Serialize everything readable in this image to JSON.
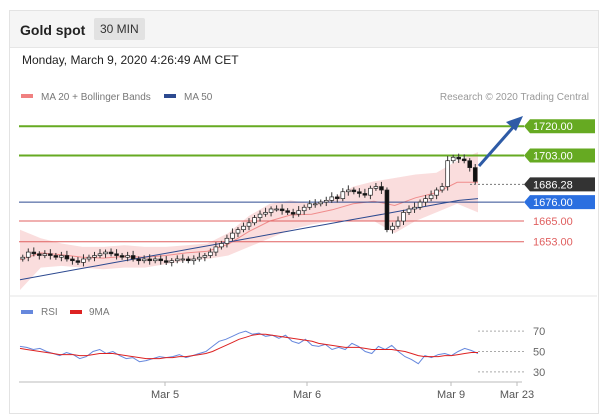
{
  "header": {
    "title": "Gold spot",
    "interval": "30 MIN"
  },
  "timestamp": "Monday, March 9, 2020 4:26:49 AM CET",
  "legend": {
    "bollinger": "MA 20 + Bollinger Bands",
    "ma50": "MA 50",
    "credit": "Research © 2020 Trading Central"
  },
  "rsi_legend": {
    "rsi": "RSI",
    "ma9": "9MA"
  },
  "colors": {
    "up": "#555555",
    "down": "#111111",
    "resistance": "#66aa22",
    "support": "#e06060",
    "ma50": "#2d4a90",
    "bands": "#f5b3b3",
    "rsi": "#6688dd",
    "ma9": "#dd2222",
    "arrow": "#2e5ba6",
    "price_badge": "#333333",
    "ma50_badge": "#2b6fe0"
  },
  "chart_data": [
    {
      "type": "line",
      "title": "",
      "ylim": [
        1625,
        1730
      ],
      "x_ticks": [
        "Mar 5",
        "Mar 6",
        "Mar 9",
        "Mar 23"
      ],
      "levels": [
        {
          "label": "1720.00",
          "value": 1720.0,
          "kind": "resistance"
        },
        {
          "label": "1703.00",
          "value": 1703.0,
          "kind": "resistance"
        },
        {
          "label": "1686.28",
          "value": 1686.28,
          "kind": "last_price"
        },
        {
          "label": "1676.00",
          "value": 1676.0,
          "kind": "ma50"
        },
        {
          "label": "1665.00",
          "value": 1665.0,
          "kind": "support"
        },
        {
          "label": "1653.00",
          "value": 1653.0,
          "kind": "support"
        }
      ],
      "close_series": [
        1644,
        1647,
        1646,
        1645,
        1646,
        1645,
        1644,
        1645,
        1643,
        1642,
        1641,
        1643,
        1644,
        1645,
        1646,
        1647,
        1646,
        1645,
        1644,
        1645,
        1643,
        1642,
        1643,
        1642,
        1643,
        1642,
        1641,
        1642,
        1643,
        1643,
        1642,
        1643,
        1644,
        1645,
        1647,
        1650,
        1652,
        1655,
        1658,
        1660,
        1662,
        1664,
        1667,
        1669,
        1670,
        1672,
        1672,
        1671,
        1670,
        1669,
        1671,
        1673,
        1675,
        1675,
        1676,
        1677,
        1679,
        1678,
        1682,
        1683,
        1682,
        1681,
        1680,
        1684,
        1685,
        1683,
        1660,
        1662,
        1665,
        1670,
        1672,
        1673,
        1676,
        1678,
        1680,
        1683,
        1685,
        1700,
        1702,
        1701,
        1700,
        1696,
        1688
      ],
      "ma50": [
        1631,
        1633,
        1635,
        1637,
        1639,
        1641,
        1643,
        1645,
        1647,
        1649,
        1651,
        1653,
        1655,
        1657,
        1659,
        1661,
        1663,
        1665,
        1667,
        1669,
        1671,
        1673,
        1675,
        1677,
        1678
      ],
      "bb_upper": [
        1660,
        1655,
        1652,
        1650,
        1650,
        1651,
        1650,
        1650,
        1651,
        1652,
        1658,
        1668,
        1675,
        1677,
        1675,
        1678,
        1685,
        1688,
        1690,
        1692,
        1693,
        1700,
        1705
      ],
      "bb_lower": [
        1625,
        1638,
        1639,
        1638,
        1637,
        1638,
        1638,
        1640,
        1642,
        1643,
        1645,
        1650,
        1655,
        1660,
        1663,
        1665,
        1665,
        1665,
        1658,
        1665,
        1670,
        1675,
        1670
      ]
    },
    {
      "type": "line",
      "title": "",
      "ylim": [
        20,
        80
      ],
      "y_ticks": [
        70,
        50,
        30
      ],
      "series": [
        {
          "name": "RSI",
          "values": [
            55,
            54,
            52,
            53,
            50,
            48,
            46,
            49,
            47,
            43,
            45,
            50,
            52,
            48,
            50,
            46,
            43,
            44,
            40,
            41,
            43,
            45,
            44,
            45,
            47,
            44,
            46,
            48,
            50,
            55,
            60,
            62,
            65,
            68,
            70,
            67,
            68,
            65,
            66,
            63,
            66,
            60,
            58,
            62,
            56,
            55,
            57,
            52,
            54,
            52,
            58,
            55,
            50,
            48,
            55,
            52,
            56,
            50,
            45,
            42,
            38,
            46,
            44,
            47,
            48,
            46,
            50,
            53,
            51,
            48
          ]
        },
        {
          "name": "9MA",
          "values": [
            53,
            52,
            51,
            50,
            49,
            48,
            47,
            47,
            47,
            46,
            46,
            47,
            48,
            48,
            48,
            47,
            46,
            45,
            44,
            43,
            43,
            43,
            44,
            44,
            45,
            45,
            46,
            47,
            48,
            50,
            53,
            56,
            59,
            62,
            64,
            66,
            67,
            67,
            66,
            65,
            64,
            63,
            62,
            61,
            60,
            58,
            57,
            56,
            55,
            54,
            54,
            54,
            53,
            52,
            52,
            52,
            52,
            51,
            50,
            48,
            46,
            45,
            45,
            45,
            46,
            46,
            47,
            48,
            49,
            49
          ]
        }
      ]
    }
  ]
}
